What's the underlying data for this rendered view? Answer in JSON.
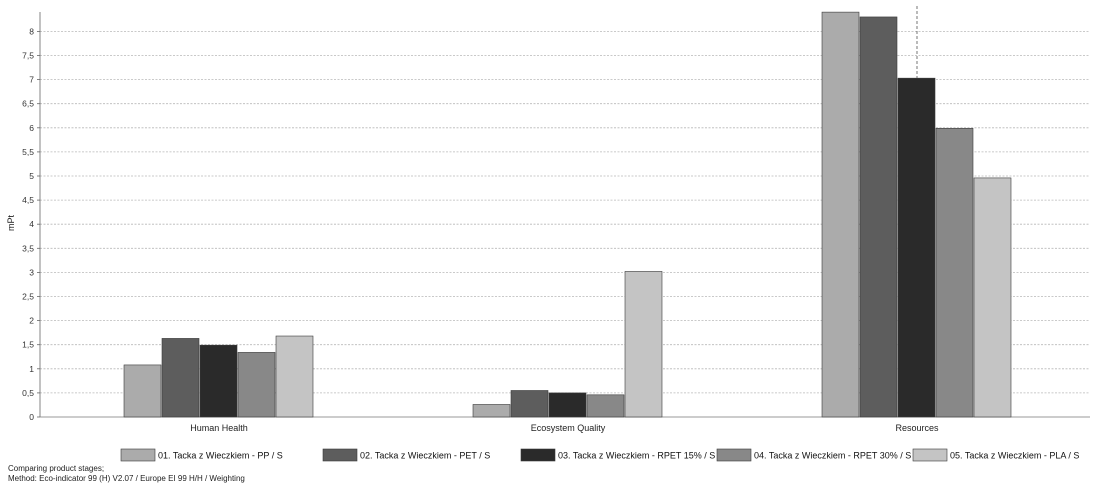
{
  "chart_data": {
    "type": "bar",
    "title": "",
    "xlabel": "",
    "ylabel": "mPt",
    "ylim": [
      0,
      8.4
    ],
    "yticks": [
      "0",
      "0,5",
      "1",
      "1,5",
      "2",
      "2,5",
      "3",
      "3,5",
      "4",
      "4,5",
      "5",
      "5,5",
      "6",
      "6,5",
      "7",
      "7,5",
      "8"
    ],
    "grid": true,
    "categories": [
      "Human Health",
      "Ecosystem Quality",
      "Resources"
    ],
    "series": [
      {
        "name": "01. Tacka z Wieczkiem - PP / S",
        "color": "#ababab",
        "values": [
          1.08,
          0.26,
          8.4
        ]
      },
      {
        "name": "02. Tacka z Wieczkiem - PET / S",
        "color": "#5d5d5d",
        "values": [
          1.63,
          0.55,
          8.3
        ]
      },
      {
        "name": "03. Tacka z Wieczkiem - RPET 15% / S",
        "color": "#2a2a2a",
        "values": [
          1.49,
          0.5,
          7.03
        ]
      },
      {
        "name": "04. Tacka z Wieczkiem - RPET 30% / S",
        "color": "#888888",
        "values": [
          1.34,
          0.46,
          5.99
        ]
      },
      {
        "name": "05. Tacka z Wieczkiem - PLA / S",
        "color": "#c4c4c4",
        "values": [
          1.68,
          3.02,
          4.96
        ]
      }
    ],
    "legend_position": "bottom"
  },
  "footer": {
    "line1": "Comparing product stages;",
    "line2": "Method: Eco-indicator 99 (H) V2.07 / Europe EI 99 H/H / Weighting"
  }
}
